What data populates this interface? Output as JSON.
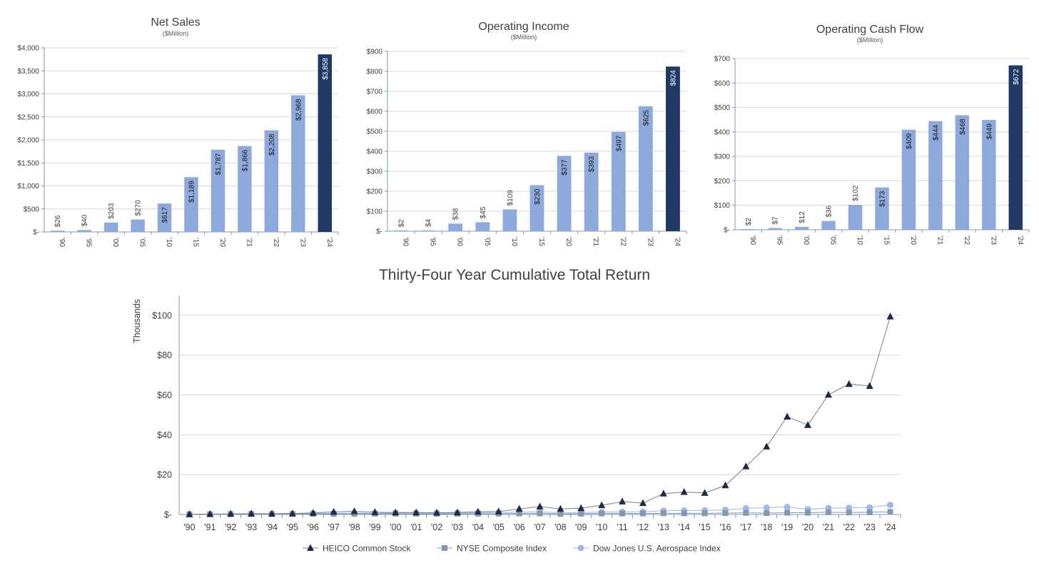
{
  "chart_data": [
    {
      "type": "bar",
      "title": "Net Sales",
      "subtitle": "($Million)",
      "categories": [
        "'90",
        "'95",
        "'00",
        "'05",
        "'10",
        "'15",
        "'20",
        "'21",
        "'22",
        "'23",
        "'24"
      ],
      "values": [
        26,
        40,
        203,
        270,
        617,
        1189,
        1787,
        1866,
        2208,
        2968,
        3858
      ],
      "value_labels": [
        "$26",
        "$40",
        "$203",
        "$270",
        "$617",
        "$1,189",
        "$1,787",
        "$1,866",
        "$2,208",
        "$2,968",
        "$3,858"
      ],
      "ylim": [
        0,
        4000
      ],
      "yticks": [
        0,
        500,
        1000,
        1500,
        2000,
        2500,
        3000,
        3500,
        4000
      ],
      "ytick_labels": [
        "$-",
        "$500",
        "$1,000",
        "$1,500",
        "$2,000",
        "$2,500",
        "$3,000",
        "$3,500",
        "$4,000"
      ],
      "highlight_index": 10,
      "colors": {
        "bar": "#8EA9DB",
        "highlight": "#1F3864"
      }
    },
    {
      "type": "bar",
      "title": "Operating Income",
      "subtitle": "($Million)",
      "categories": [
        "'90",
        "'95",
        "'00",
        "'05",
        "'10",
        "'15",
        "'20",
        "'21",
        "'22",
        "'23",
        "'24"
      ],
      "values": [
        2,
        4,
        38,
        45,
        109,
        230,
        377,
        393,
        497,
        625,
        824
      ],
      "value_labels": [
        "$2",
        "$4",
        "$38",
        "$45",
        "$109",
        "$230",
        "$377",
        "$393",
        "$497",
        "$625",
        "$824"
      ],
      "ylim": [
        0,
        900
      ],
      "yticks": [
        0,
        100,
        200,
        300,
        400,
        500,
        600,
        700,
        800,
        900
      ],
      "ytick_labels": [
        "$-",
        "$100",
        "$200",
        "$300",
        "$400",
        "$500",
        "$600",
        "$700",
        "$800",
        "$900"
      ],
      "highlight_index": 10,
      "colors": {
        "bar": "#8EA9DB",
        "highlight": "#1F3864"
      }
    },
    {
      "type": "bar",
      "title": "Operating Cash Flow",
      "subtitle": "($Million)",
      "categories": [
        "'90",
        "'95",
        "'00",
        "'05",
        "'10",
        "'15",
        "'20",
        "'21",
        "'22",
        "'23",
        "'24"
      ],
      "values": [
        2,
        7,
        12,
        36,
        102,
        173,
        409,
        444,
        468,
        449,
        672
      ],
      "value_labels": [
        "$2",
        "$7",
        "$12",
        "$36",
        "$102",
        "$173",
        "$409",
        "$444",
        "$468",
        "$449",
        "$672"
      ],
      "ylim": [
        0,
        700
      ],
      "yticks": [
        0,
        100,
        200,
        300,
        400,
        500,
        600,
        700
      ],
      "ytick_labels": [
        "$-",
        "$100",
        "$200",
        "$300",
        "$400",
        "$500",
        "$600",
        "$700"
      ],
      "highlight_index": 10,
      "colors": {
        "bar": "#8EA9DB",
        "highlight": "#1F3864"
      }
    },
    {
      "type": "line",
      "title": "Thirty-Four Year Cumulative Total Return",
      "ylabel": "Thousands",
      "x": [
        "'90",
        "'91",
        "'92",
        "'93",
        "'94",
        "'95",
        "'96",
        "'97",
        "'98",
        "'99",
        "'00",
        "'01",
        "'02",
        "'03",
        "'04",
        "'05",
        "'06",
        "'07",
        "'08",
        "'09",
        "'10",
        "'11",
        "'12",
        "'13",
        "'14",
        "'15",
        "'16",
        "'17",
        "'18",
        "'19",
        "'20",
        "'21",
        "'22",
        "'23",
        "'24"
      ],
      "ylim": [
        0,
        110
      ],
      "yticks": [
        0,
        20,
        40,
        60,
        80,
        100
      ],
      "ytick_labels": [
        "$-",
        "$20",
        "$40",
        "$60",
        "$80",
        "$100"
      ],
      "legend_position": "bottom",
      "series": [
        {
          "name": "HEICO Common Stock",
          "marker": "triangle",
          "color": "#1F2A44",
          "values": [
            0.1,
            0.2,
            0.3,
            0.4,
            0.4,
            0.5,
            0.8,
            1.3,
            1.6,
            1.1,
            1.0,
            1.0,
            0.9,
            1.0,
            1.4,
            1.5,
            2.8,
            4.0,
            2.8,
            3.2,
            4.6,
            6.5,
            5.7,
            10.5,
            11.3,
            10.8,
            14.6,
            24.1,
            34.1,
            49.1,
            44.9,
            60.1,
            65.5,
            64.5,
            99.4
          ]
        },
        {
          "name": "NYSE Composite Index",
          "marker": "square",
          "color": "#8497B0",
          "values": [
            0.1,
            0.1,
            0.2,
            0.2,
            0.2,
            0.2,
            0.3,
            0.3,
            0.3,
            0.4,
            0.4,
            0.4,
            0.3,
            0.4,
            0.4,
            0.4,
            0.5,
            0.5,
            0.3,
            0.4,
            0.5,
            0.5,
            0.5,
            0.6,
            0.6,
            0.6,
            0.7,
            0.8,
            0.7,
            0.9,
            0.9,
            1.1,
            1.0,
            1.1,
            1.3
          ]
        },
        {
          "name": "Dow Jones U.S. Aerospace Index",
          "marker": "circle",
          "color": "#9DB9E8",
          "values": [
            0.1,
            0.2,
            0.2,
            0.3,
            0.3,
            0.4,
            0.5,
            0.6,
            0.7,
            0.6,
            0.8,
            0.8,
            0.7,
            0.8,
            0.9,
            1.0,
            1.1,
            1.3,
            0.9,
            1.0,
            1.2,
            1.3,
            1.4,
            1.9,
            2.0,
            2.0,
            2.3,
            3.1,
            3.4,
            3.8,
            2.6,
            3.2,
            3.3,
            3.5,
            4.8
          ]
        }
      ]
    }
  ]
}
